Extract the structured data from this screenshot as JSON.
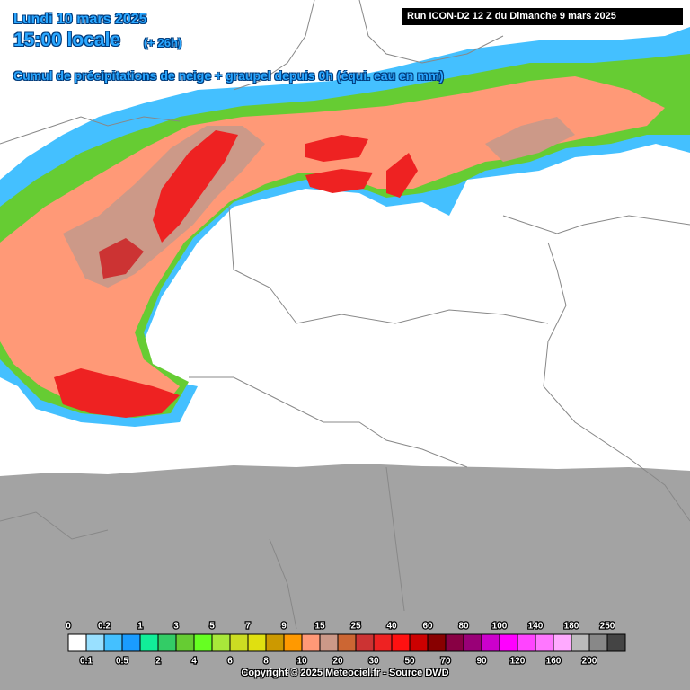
{
  "header": {
    "date": "Lundi 10 mars 2025",
    "time": "15:00 locale",
    "lead": "(+ 26h)",
    "description": "Cumul de précipitations de neige + graupel depuis 0h (équi. eau en mm)",
    "run": "Run ICON-D2 12 Z du Dimanche 9 mars 2025"
  },
  "legend": {
    "ticks": [
      0,
      0.1,
      0.2,
      0.5,
      1,
      2,
      3,
      4,
      5,
      6,
      7,
      8,
      9,
      10,
      15,
      20,
      25,
      30,
      40,
      50,
      60,
      70,
      80,
      90,
      100,
      120,
      140,
      160,
      180,
      200,
      250
    ],
    "colors": [
      "#ffffff",
      "#99e0ff",
      "#44c0ff",
      "#1a9cff",
      "#11ee99",
      "#33cc66",
      "#66cc33",
      "#66ff22",
      "#a8e83a",
      "#ccdd22",
      "#e0e010",
      "#cc9900",
      "#ff9900",
      "#ff9977",
      "#cc9988",
      "#cc6633",
      "#cc3333",
      "#ee2222",
      "#ff1111",
      "#cc0000",
      "#880000",
      "#880044",
      "#990077",
      "#cc00cc",
      "#ff00ff",
      "#ff44ff",
      "#ff77ff",
      "#ffaaff",
      "#bbbbbb",
      "#888888",
      "#444444"
    ]
  },
  "footer": {
    "copyright": "Copyright © 2025 Meteociel.fr - Source DWD"
  }
}
